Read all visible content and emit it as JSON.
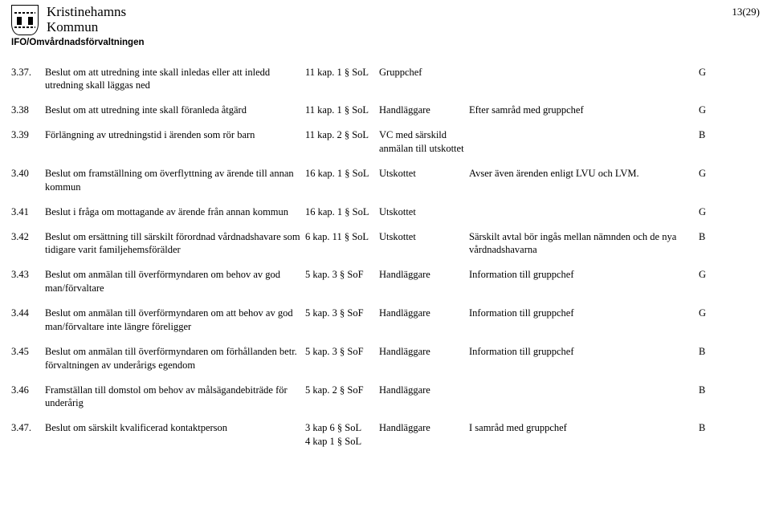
{
  "pagenum": "13(29)",
  "municipality": {
    "line1": "Kristinehamns",
    "line2": "Kommun"
  },
  "department": "IFO/Omvårdnadsförvaltningen",
  "rows": [
    {
      "num": "3.37.",
      "desc": "Beslut om att utredning inte skall inledas eller att inledd utredning skall läggas ned",
      "ref": "11 kap. 1 § SoL",
      "who": "Gruppchef",
      "note": "",
      "flag": "G"
    },
    {
      "num": "3.38",
      "desc": "Beslut om att utredning inte skall föranleda åtgärd",
      "ref": "11 kap. 1 § SoL",
      "who": "Handläggare",
      "note": "Efter samråd med gruppchef",
      "flag": "G"
    },
    {
      "num": "3.39",
      "desc": "Förlängning av utredningstid i ärenden som rör barn",
      "ref": "11 kap. 2 § SoL",
      "who": "VC med särskild anmälan till utskottet",
      "note": "",
      "flag": "B"
    },
    {
      "num": "3.40",
      "desc": "Beslut om framställning om överflyttning av ärende till annan kommun",
      "ref": "16 kap. 1 § SoL",
      "who": "Utskottet",
      "note": "Avser även ärenden enligt LVU och LVM.",
      "flag": "G"
    },
    {
      "num": "3.41",
      "desc": "Beslut i fråga om mottagande av ärende från annan kommun",
      "ref": "16 kap. 1 § SoL",
      "who": "Utskottet",
      "note": "",
      "flag": "G"
    },
    {
      "num": "3.42",
      "desc": "Beslut om ersättning till särskilt förordnad vårdnadshavare som tidigare varit familjehemsförälder",
      "ref": "6 kap. 11 § SoL",
      "who": "Utskottet",
      "note": "Särskilt avtal bör ingås mellan nämnden och de nya vårdnadshavarna",
      "flag": "B"
    },
    {
      "num": "3.43",
      "desc": "Beslut om anmälan till överförmyndaren om behov av god man/förvaltare",
      "ref": "5 kap. 3 § SoF",
      "who": "Handläggare",
      "note": "Information till gruppchef",
      "flag": "G"
    },
    {
      "num": "3.44",
      "desc": "Beslut om anmälan till överförmyndaren om att behov av god man/förvaltare inte längre föreligger",
      "ref": "5 kap. 3 § SoF",
      "who": "Handläggare",
      "note": "Information till gruppchef",
      "flag": "G"
    },
    {
      "num": "3.45",
      "desc": "Beslut om anmälan till överförmyndaren om förhållanden betr. förvaltningen av underårigs egendom",
      "ref": "5 kap. 3 § SoF",
      "who": "Handläggare",
      "note": "Information till gruppchef",
      "flag": "B"
    },
    {
      "num": "3.46",
      "desc": "Framställan till domstol om behov av målsägandebiträde för underårig",
      "ref": "5 kap. 2 § SoF",
      "who": "Handläggare",
      "note": "",
      "flag": "B"
    },
    {
      "num": "3.47.",
      "desc": "Beslut om särskilt kvalificerad kontaktperson",
      "ref": "3 kap 6 § SoL\n4 kap 1 § SoL",
      "who": "Handläggare",
      "note": "I samråd med gruppchef",
      "flag": "B"
    }
  ]
}
